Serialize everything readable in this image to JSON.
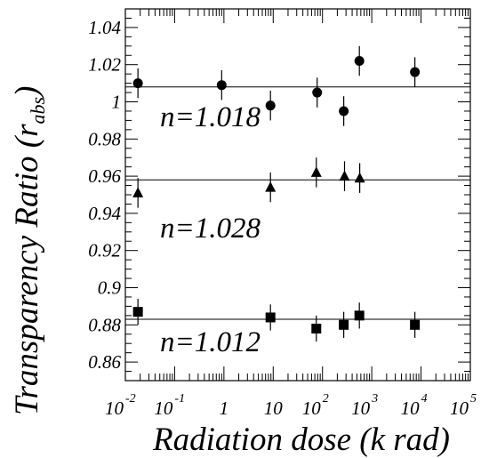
{
  "chart_data": {
    "type": "scatter",
    "title": "",
    "xlabel": "Radiation dose (k rad)",
    "ylabel_main": "Transparency Ratio (r",
    "ylabel_sub": "abs",
    "ylabel_close": ")",
    "xscale": "log",
    "xlim": [
      0.01,
      100000
    ],
    "ylim": [
      0.85,
      1.05
    ],
    "x_tick_labels": [
      {
        "value": 0.01,
        "base": "10",
        "exp": "-2"
      },
      {
        "value": 0.1,
        "base": "10",
        "exp": "-1"
      },
      {
        "value": 1,
        "base": "1",
        "exp": ""
      },
      {
        "value": 10,
        "base": "10",
        "exp": ""
      },
      {
        "value": 100,
        "base": "10",
        "exp": "2"
      },
      {
        "value": 1000,
        "base": "10",
        "exp": "3"
      },
      {
        "value": 10000,
        "base": "10",
        "exp": "4"
      },
      {
        "value": 100000,
        "base": "10",
        "exp": "5"
      }
    ],
    "y_tick_labels": [
      "0.86",
      "0.88",
      "0.9",
      "0.92",
      "0.94",
      "0.96",
      "0.98",
      "1",
      "1.02",
      "1.04"
    ],
    "y_tick_values": [
      0.86,
      0.88,
      0.9,
      0.92,
      0.94,
      0.96,
      0.98,
      1.0,
      1.02,
      1.04
    ],
    "grid": false,
    "series": [
      {
        "marker": "circle",
        "annotation": "n=1.018",
        "fit_line": 1.008,
        "points": [
          {
            "x": 0.018,
            "y": 1.01,
            "err": 0.008
          },
          {
            "x": 0.9,
            "y": 1.009,
            "err": 0.008
          },
          {
            "x": 8.8,
            "y": 0.998,
            "err": 0.008
          },
          {
            "x": 78,
            "y": 1.005,
            "err": 0.008
          },
          {
            "x": 270,
            "y": 0.995,
            "err": 0.008
          },
          {
            "x": 560,
            "y": 1.022,
            "err": 0.008
          },
          {
            "x": 7500,
            "y": 1.016,
            "err": 0.008
          }
        ]
      },
      {
        "marker": "triangle",
        "annotation": "n=1.028",
        "fit_line": 0.958,
        "points": [
          {
            "x": 0.018,
            "y": 0.951,
            "err": 0.008
          },
          {
            "x": 8.8,
            "y": 0.954,
            "err": 0.008
          },
          {
            "x": 75,
            "y": 0.962,
            "err": 0.008
          },
          {
            "x": 280,
            "y": 0.96,
            "err": 0.008
          },
          {
            "x": 570,
            "y": 0.959,
            "err": 0.008
          }
        ]
      },
      {
        "marker": "square",
        "annotation": "n=1.012",
        "fit_line": 0.883,
        "points": [
          {
            "x": 0.018,
            "y": 0.887,
            "err": 0.007
          },
          {
            "x": 8.8,
            "y": 0.884,
            "err": 0.007
          },
          {
            "x": 75,
            "y": 0.878,
            "err": 0.007
          },
          {
            "x": 270,
            "y": 0.88,
            "err": 0.007
          },
          {
            "x": 560,
            "y": 0.885,
            "err": 0.007
          },
          {
            "x": 7500,
            "y": 0.88,
            "err": 0.007
          }
        ]
      }
    ]
  }
}
